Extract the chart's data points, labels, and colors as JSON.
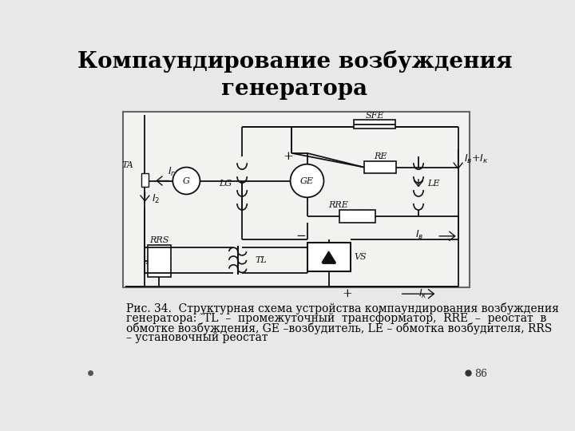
{
  "title": "Компаундирование возбуждения\nгенератора",
  "title_fontsize": 20,
  "caption_line1": "Рис. 34.  Структурная схема устройства компаундирования возбуждения",
  "caption_line2": "генератора:  TL  –  промежуточный  трансформатор,  RRE  –  реостат  в",
  "caption_line3": "обмотке возбуждения, GE –возбудитель, LE – обмотка возбудителя, RRS",
  "caption_line4": "– установочный реостат",
  "caption_fontsize": 10,
  "slide_bg": "#e8e8e8",
  "diagram_bg": "#f2f2f0",
  "line_color": "#111111",
  "page_num": "86"
}
